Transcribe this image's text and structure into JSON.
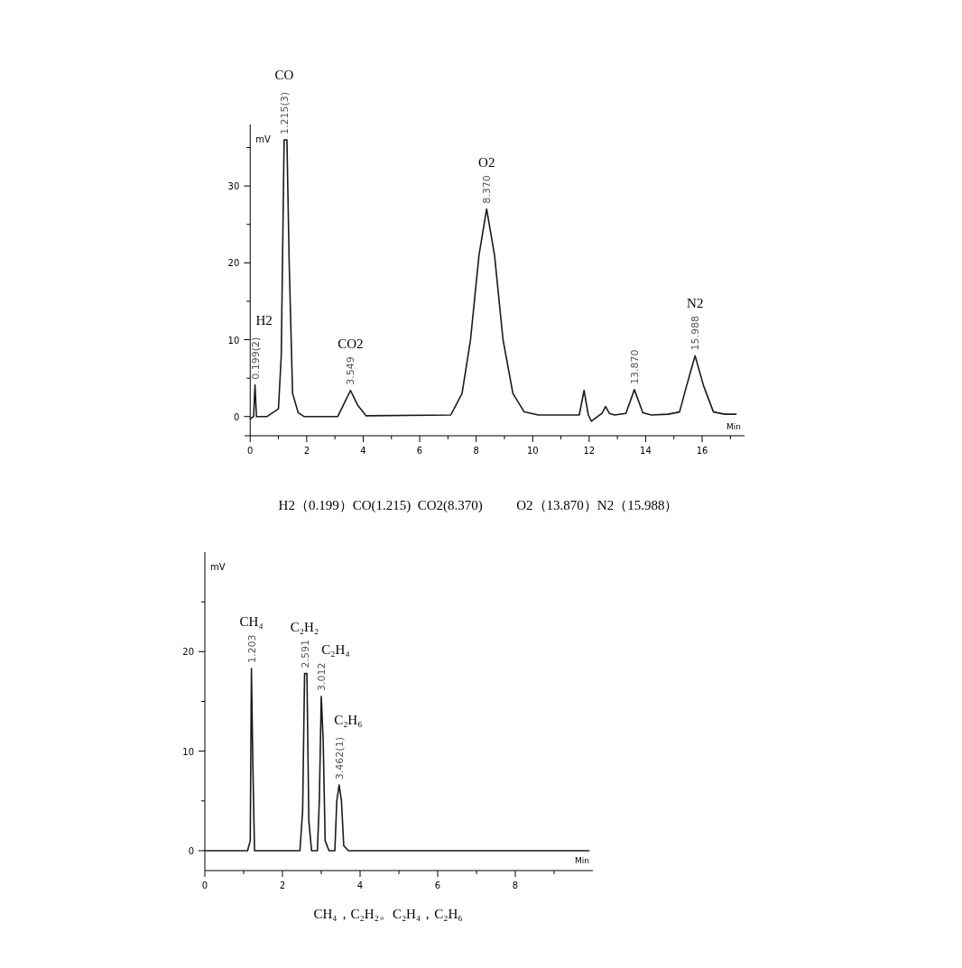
{
  "chart_data": [
    {
      "type": "line",
      "xlabel": "Min",
      "ylabel": "mV",
      "x": [
        0,
        0.12,
        0.17,
        0.22,
        0.6,
        0.8,
        1.0,
        1.1,
        1.2,
        1.3,
        1.38,
        1.5,
        1.7,
        1.9,
        3.1,
        3.3,
        3.55,
        3.8,
        4.1,
        7.1,
        7.5,
        7.8,
        8.1,
        8.37,
        8.65,
        8.95,
        9.3,
        9.7,
        10.2,
        11.65,
        11.82,
        11.97,
        12.08,
        12.3,
        12.45,
        12.58,
        12.72,
        12.9,
        13.3,
        13.6,
        13.9,
        14.2,
        14.8,
        15.2,
        15.45,
        15.75,
        16.05,
        16.4,
        16.8,
        17.2
      ],
      "series": [
        {
          "color": "#1a1a1a",
          "values": [
            -0.3,
            0,
            4.1,
            0,
            0,
            0.5,
            1,
            8,
            36,
            36,
            20,
            3,
            0.5,
            0,
            0,
            1.5,
            3.4,
            1.5,
            0.1,
            0.2,
            3,
            10,
            21,
            27,
            21,
            10,
            3,
            0.6,
            0.2,
            0.2,
            3.4,
            0.2,
            -0.6,
            0,
            0.4,
            1.3,
            0.4,
            0.2,
            0.4,
            3.5,
            0.5,
            0.2,
            0.3,
            0.6,
            4,
            7.9,
            4,
            0.6,
            0.3,
            0.3
          ]
        }
      ],
      "xlim": [
        -0.2,
        17.5
      ],
      "xticks": [
        0,
        {
          "value": 1,
          "label": null
        },
        2,
        {
          "value": 3,
          "label": null
        },
        4,
        {
          "value": 5,
          "label": null
        },
        6,
        {
          "value": 7,
          "label": null
        },
        8,
        {
          "value": 9,
          "label": null
        },
        10,
        {
          "value": 11,
          "label": null
        },
        12,
        {
          "value": 13,
          "label": null
        },
        14,
        {
          "value": 15,
          "label": null
        },
        16,
        {
          "value": 17,
          "label": null
        }
      ],
      "ylim": [
        -2.5,
        38
      ],
      "yticks": [
        0,
        {
          "value": 5,
          "label": null
        },
        10,
        {
          "value": 15,
          "label": null
        },
        20,
        {
          "value": 25,
          "label": null
        },
        30,
        {
          "value": 35,
          "label": null
        }
      ],
      "annotations": [
        "H2",
        "CO",
        "CO2",
        "O2",
        null,
        "N2",
        {
          "text": "0.199(2)",
          "x": 0.17,
          "y": 4.1
        },
        {
          "text": "1.215(3)",
          "x": 1.2,
          "y": 36
        },
        {
          "text": "3.549",
          "x": 3.55,
          "y": 3.4
        },
        {
          "text": "8.370",
          "x": 8.37,
          "y": 27
        },
        {
          "text": "13.870",
          "x": 13.6,
          "y": 3.5
        },
        {
          "text": "15.988",
          "x": 15.75,
          "y": 7.9
        },
        "H2（0.199）CO(1.215)  CO2(8.370)          O2（13.870）N2（15.988）"
      ]
    },
    {
      "type": "line",
      "xlabel": "Min",
      "ylabel": "mV",
      "x": [
        0,
        1.1,
        1.17,
        1.2,
        1.24,
        1.28,
        2.45,
        2.52,
        2.57,
        2.63,
        2.68,
        2.75,
        2.9,
        2.95,
        3.0,
        3.05,
        3.1,
        3.2,
        3.35,
        3.4,
        3.46,
        3.52,
        3.58,
        3.7,
        9.9
      ],
      "series": [
        {
          "color": "#1a1a1a",
          "values": [
            0,
            0,
            1,
            18.3,
            8,
            0,
            0,
            4,
            17.8,
            17.8,
            3,
            0,
            0,
            5,
            15.5,
            11,
            1,
            0,
            0,
            5,
            6.6,
            5,
            0.5,
            0,
            0
          ]
        }
      ],
      "xlim": [
        0,
        10
      ],
      "xticks": [
        0,
        {
          "value": 1,
          "label": null
        },
        2,
        {
          "value": 3,
          "label": null
        },
        4,
        {
          "value": 5,
          "label": null
        },
        6,
        {
          "value": 7,
          "label": null
        },
        8,
        {
          "value": 9,
          "label": null
        }
      ],
      "ylim": [
        -2,
        30
      ],
      "yticks": [
        0,
        {
          "value": 5,
          "label": null
        },
        10,
        {
          "value": 15,
          "label": null
        },
        20,
        {
          "value": 25,
          "label": null
        }
      ],
      "annotations": [
        "CH₄",
        "C₂H₂",
        "C₂H₄",
        "C₂H₆",
        {
          "text": "1.203",
          "x": 1.2,
          "y": 18.3
        },
        {
          "text": "2.591",
          "x": 2.57,
          "y": 17.8
        },
        {
          "text": "3.012",
          "x": 3.0,
          "y": 15.5
        },
        {
          "text": "3.462(1)",
          "x": 3.46,
          "y": 6.6
        },
        "CH₄，C₂H₂。C₂H₄，C₂H₆"
      ]
    }
  ]
}
